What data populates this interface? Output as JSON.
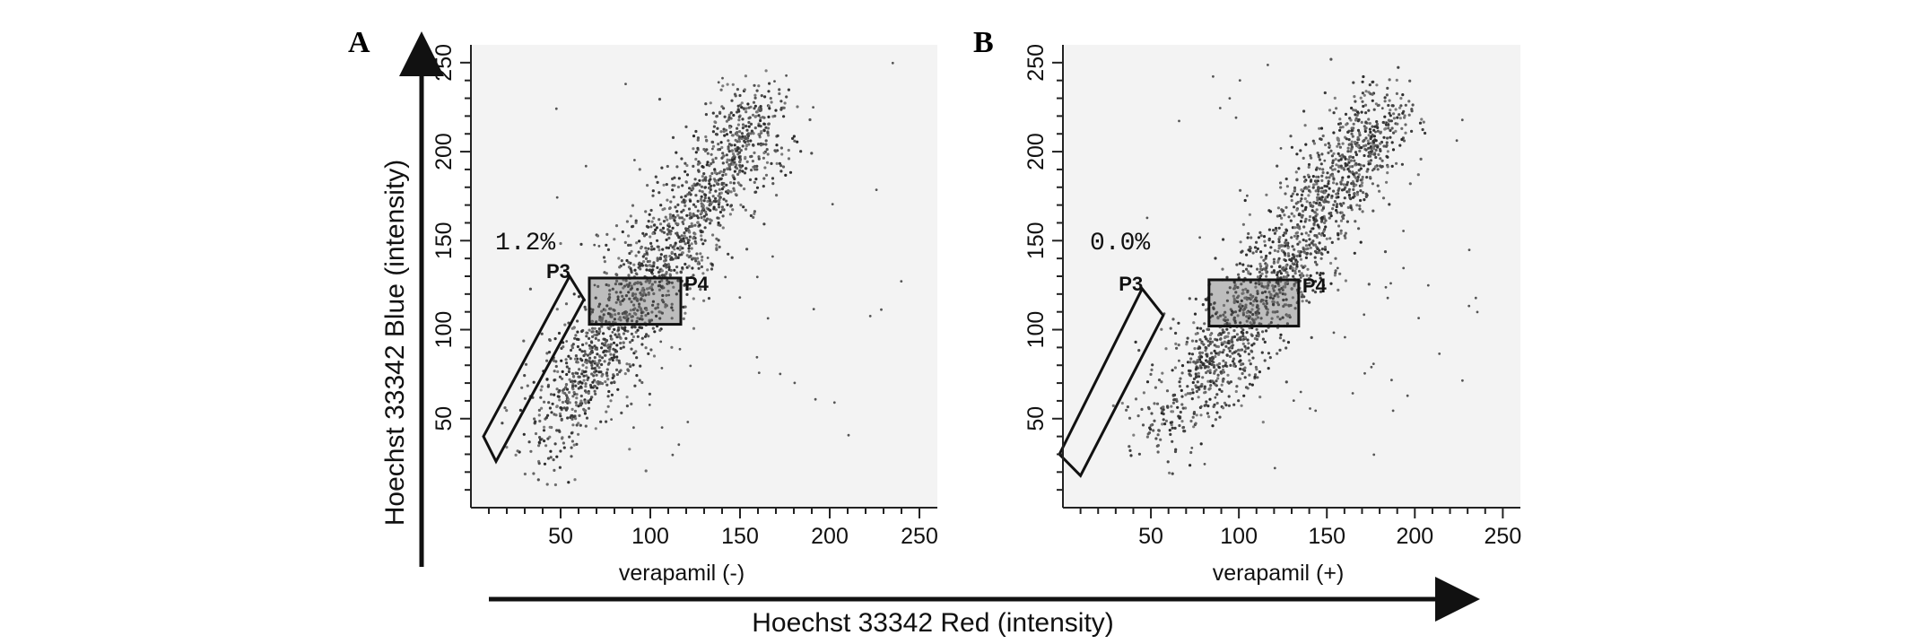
{
  "figure": {
    "y_axis_label": "Hoechst 33342 Blue (intensity)",
    "x_axis_label": "Hoechst 33342 Red (intensity)"
  },
  "chart_data": [
    {
      "type": "scatter",
      "panel": "A",
      "xlabel": "verapamil (-)",
      "xlim": [
        0,
        260
      ],
      "ylim": [
        0,
        260
      ],
      "x_ticks": [
        "50",
        "100",
        "150",
        "200",
        "250"
      ],
      "y_ticks": [
        "50",
        "100",
        "150",
        "200",
        "250"
      ],
      "gates": [
        {
          "name": "P3",
          "shape": "polygon",
          "vertices": [
            [
              7,
              40
            ],
            [
              14,
              26
            ],
            [
              63,
              117
            ],
            [
              55,
              130
            ]
          ]
        },
        {
          "name": "P4",
          "shape": "rectangle",
          "x_range": [
            66,
            117
          ],
          "y_range": [
            103,
            129
          ]
        }
      ],
      "annotations": [
        "1.2%"
      ],
      "points_trend": [
        [
          25,
          20
        ],
        [
          60,
          70
        ],
        [
          90,
          115
        ],
        [
          120,
          160
        ],
        [
          150,
          205
        ],
        [
          175,
          240
        ]
      ]
    },
    {
      "type": "scatter",
      "panel": "B",
      "xlabel": "verapamil (+)",
      "xlim": [
        0,
        260
      ],
      "ylim": [
        0,
        260
      ],
      "x_ticks": [
        "50",
        "100",
        "150",
        "200",
        "250"
      ],
      "y_ticks": [
        "50",
        "100",
        "150",
        "200",
        "250"
      ],
      "gates": [
        {
          "name": "P3",
          "shape": "polygon",
          "vertices": [
            [
              -2,
              30
            ],
            [
              10,
              18
            ],
            [
              57,
              108
            ],
            [
              45,
              123
            ]
          ]
        },
        {
          "name": "P4",
          "shape": "rectangle",
          "x_range": [
            83,
            134
          ],
          "y_range": [
            102,
            128
          ]
        }
      ],
      "annotations": [
        "0.0%"
      ],
      "points_trend": [
        [
          40,
          25
        ],
        [
          80,
          75
        ],
        [
          110,
          115
        ],
        [
          140,
          160
        ],
        [
          170,
          205
        ],
        [
          195,
          240
        ]
      ]
    }
  ]
}
